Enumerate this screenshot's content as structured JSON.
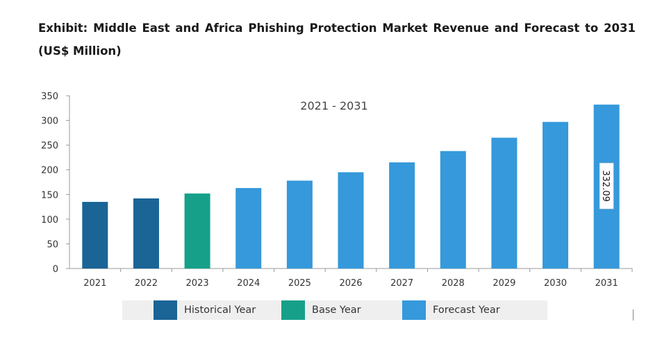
{
  "title": "Exhibit: Middle East and Africa Phishing Protection Market Revenue and Forecast to 2031 (US$ Million)",
  "colors": {
    "historical": "#1a6496",
    "base": "#16a08a",
    "forecast": "#3599db",
    "gridline": "#cccccc",
    "axis": "#999999"
  },
  "legend": [
    {
      "label": "Historical Year",
      "color": "#1a6496"
    },
    {
      "label": "Base Year",
      "color": "#16a08a"
    },
    {
      "label": "Forecast Year",
      "color": "#3599db"
    }
  ],
  "chart_data": {
    "type": "bar",
    "title": "Exhibit: Middle East and Africa Phishing Protection Market Revenue and Forecast to 2031 (US$ Million)",
    "annotation": "2021 - 2031",
    "categories": [
      "2021",
      "2022",
      "2023",
      "2024",
      "2025",
      "2026",
      "2027",
      "2028",
      "2029",
      "2030",
      "2031"
    ],
    "values": [
      135,
      142,
      152,
      163,
      178,
      195,
      215,
      238,
      265,
      297,
      332.09
    ],
    "year_type": [
      "historical",
      "historical",
      "base",
      "forecast",
      "forecast",
      "forecast",
      "forecast",
      "forecast",
      "forecast",
      "forecast",
      "forecast"
    ],
    "data_labels": [
      {
        "category": "2031",
        "text": "332.09"
      }
    ],
    "yticks": [
      0,
      50,
      100,
      150,
      200,
      250,
      300,
      350
    ],
    "ylim": [
      0,
      350
    ],
    "xlabel": "",
    "ylabel": "",
    "grid": false,
    "legend_position": "bottom"
  }
}
